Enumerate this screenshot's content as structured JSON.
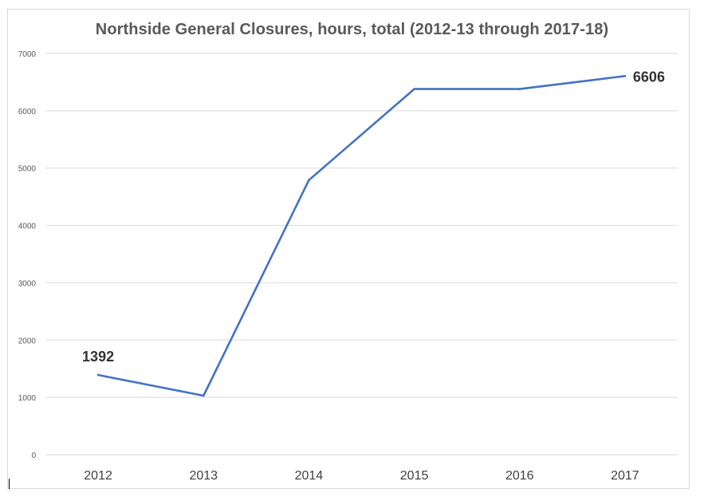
{
  "chart_data": {
    "type": "line",
    "title": "Northside General Closures, hours, total (2012-13 through 2017-18)",
    "xlabel": "",
    "ylabel": "",
    "categories": [
      "2012",
      "2013",
      "2014",
      "2015",
      "2016",
      "2017"
    ],
    "series": [
      {
        "values": [
          1392,
          1030,
          4790,
          6380,
          6380,
          6606
        ],
        "color": "#4472c4"
      }
    ],
    "ylim": [
      0,
      7000
    ],
    "yticks": [
      "0",
      "1000",
      "2000",
      "3000",
      "4000",
      "5000",
      "6000",
      "7000"
    ],
    "data_labels": [
      {
        "index": 0,
        "text": "1392"
      },
      {
        "index": 5,
        "text": "6606"
      }
    ],
    "grid": true,
    "legend": "none"
  }
}
